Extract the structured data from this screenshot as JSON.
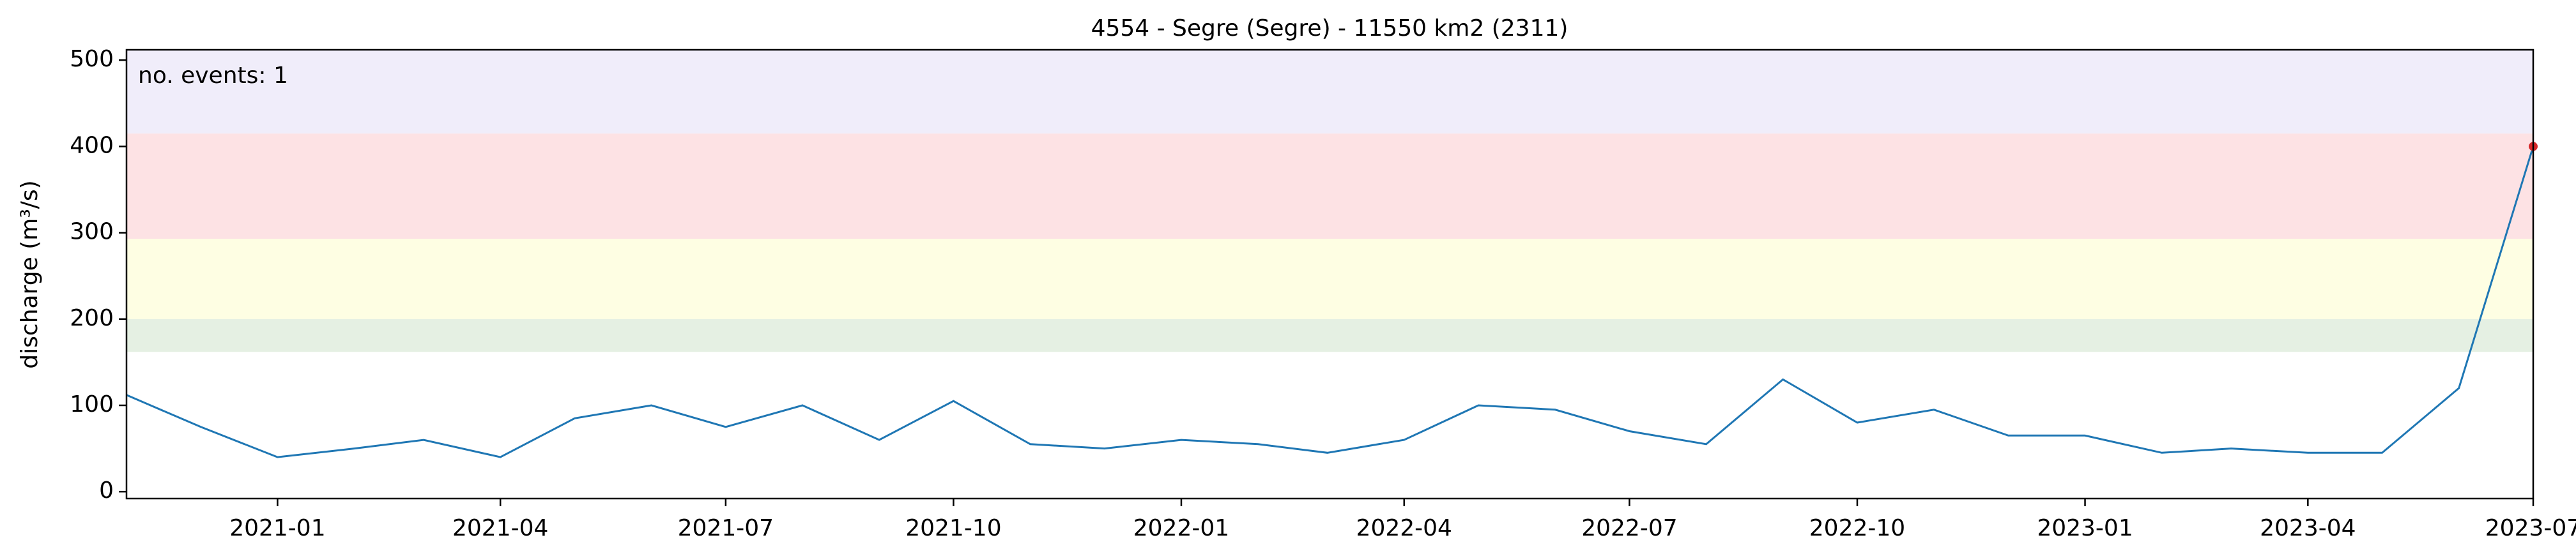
{
  "chart_data": {
    "type": "line",
    "title": "4554 - Segre (Segre) - 11550 km2 (2311)",
    "y_label": "discharge (m³/s)",
    "annotation": "no. events: 1",
    "annotation_color": "#d62728",
    "xlim": [
      "2020-11",
      "2023-07"
    ],
    "xticks": [
      "2021-01",
      "2021-04",
      "2021-07",
      "2021-10",
      "2022-01",
      "2022-04",
      "2022-07",
      "2022-10",
      "2023-01",
      "2023-04",
      "2023-07"
    ],
    "ylim": [
      -8,
      512
    ],
    "yticks": [
      0,
      100,
      200,
      300,
      400,
      500
    ],
    "bands": [
      {
        "from": 162,
        "to": 200,
        "color": "#e5f0e3"
      },
      {
        "from": 200,
        "to": 293,
        "color": "#fefee3"
      },
      {
        "from": 293,
        "to": 415,
        "color": "#fde2e4"
      },
      {
        "from": 415,
        "to": 512,
        "color": "#f0edfa"
      }
    ],
    "x": [
      "2020-11",
      "2020-12",
      "2021-01",
      "2021-02",
      "2021-03",
      "2021-04",
      "2021-05",
      "2021-06",
      "2021-07",
      "2021-08",
      "2021-09",
      "2021-10",
      "2021-11",
      "2021-12",
      "2022-01",
      "2022-02",
      "2022-03",
      "2022-04",
      "2022-05",
      "2022-06",
      "2022-07",
      "2022-08",
      "2022-09",
      "2022-10",
      "2022-11",
      "2022-12",
      "2023-01",
      "2023-02",
      "2023-03",
      "2023-04",
      "2023-05",
      "2023-06",
      "2023-07"
    ],
    "series": [
      {
        "name": "discharge",
        "color": "#1f77b4",
        "values": [
          112,
          75,
          40,
          50,
          60,
          40,
          85,
          100,
          75,
          100,
          60,
          105,
          55,
          50,
          60,
          55,
          45,
          60,
          100,
          95,
          70,
          55,
          130,
          80,
          95,
          65,
          65,
          45,
          50,
          45,
          45,
          120,
          400
        ]
      }
    ],
    "events": {
      "color": "#d62728",
      "x": [
        "2023-07"
      ],
      "values": [
        400
      ]
    }
  }
}
